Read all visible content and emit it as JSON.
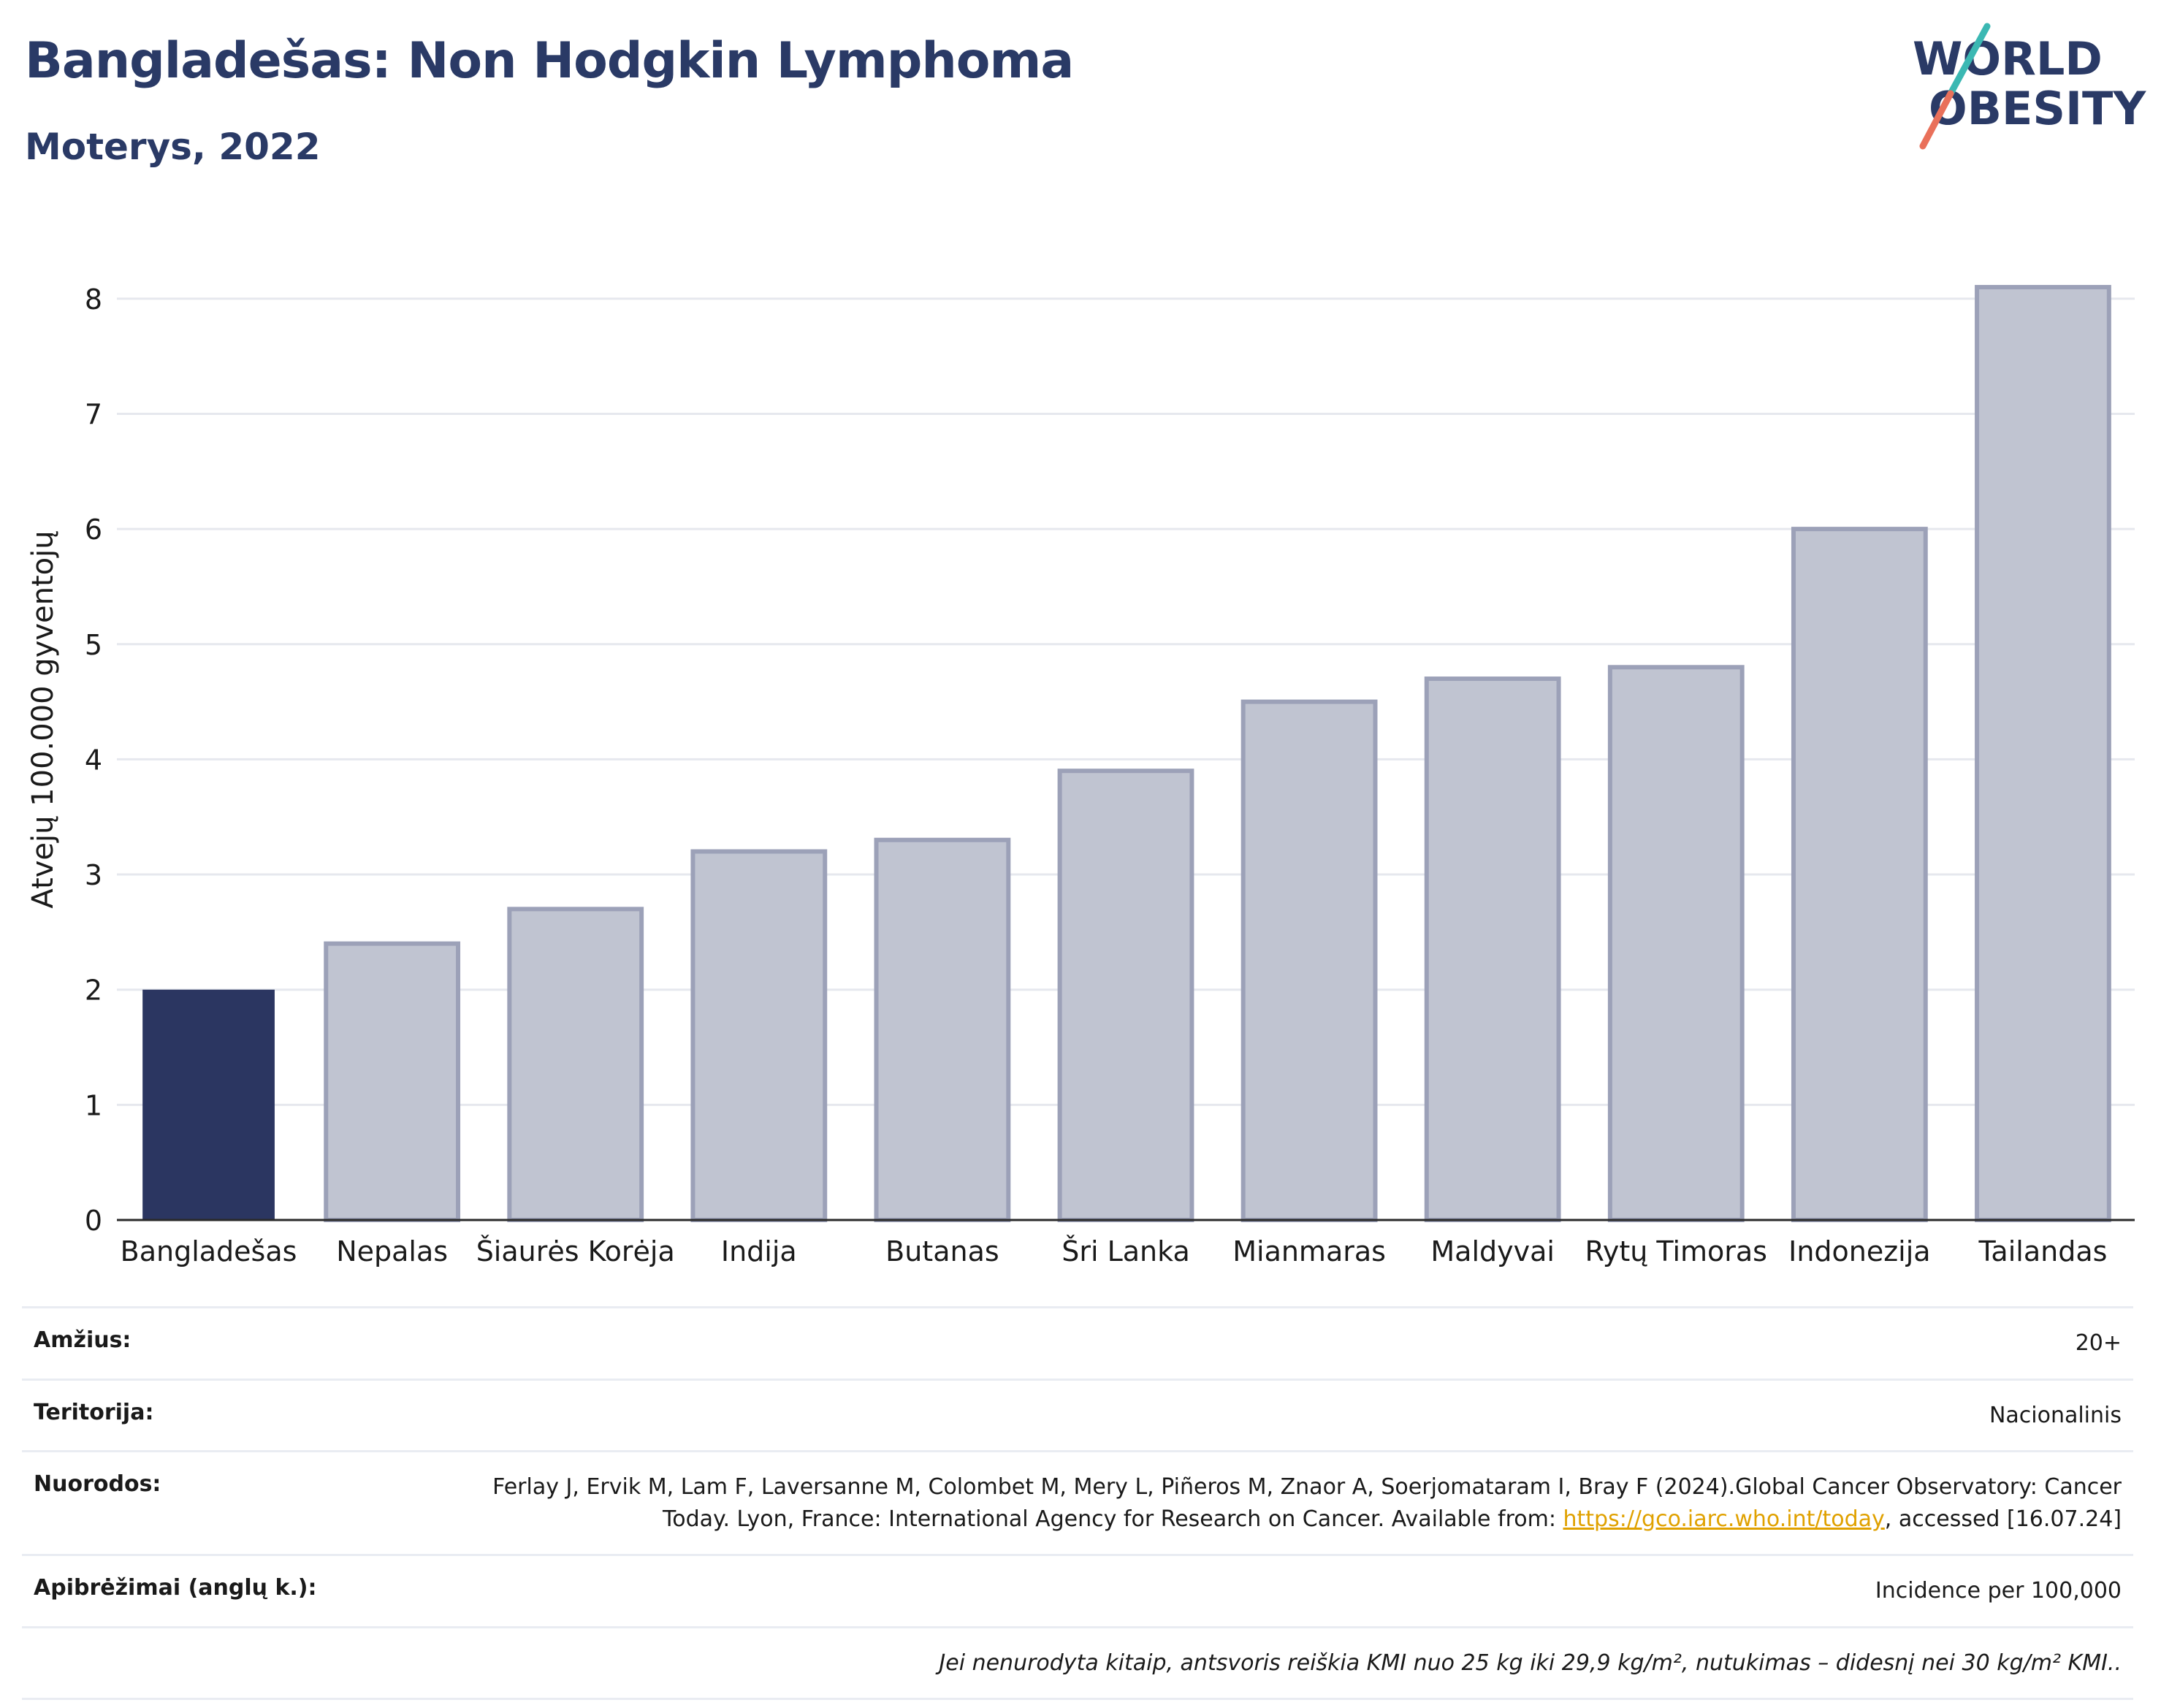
{
  "header": {
    "title": "Bangladešas: Non Hodgkin Lymphoma",
    "subtitle": "Moterys, 2022"
  },
  "logo": {
    "line1": "WORLD",
    "line2": "OBESITY"
  },
  "colors": {
    "highlight": "#2b3661",
    "bar": "#c0c4d1",
    "bar_stroke": "#9ca1b8",
    "grid": "#e6e8ee",
    "text": "#2a3a66"
  },
  "chart_data": {
    "type": "bar",
    "categories": [
      "Bangladešas",
      "Nepalas",
      "Šiaurės Korėja",
      "Indija",
      "Butanas",
      "Šri Lanka",
      "Mianmaras",
      "Maldyvai",
      "Rytų Timoras",
      "Indonezija",
      "Tailandas"
    ],
    "values": [
      2.0,
      2.4,
      2.7,
      3.2,
      3.3,
      3.9,
      4.5,
      4.7,
      4.8,
      6.0,
      8.1
    ],
    "highlight_index": 0,
    "ylabel": "Atvejų 100.000 gyventojų",
    "xlabel": "",
    "ylim": [
      0,
      8.5
    ],
    "yticks": [
      0,
      1,
      2,
      3,
      4,
      5,
      6,
      7,
      8
    ],
    "grid": true
  },
  "info": {
    "rows": [
      {
        "label": "Amžius:",
        "value": "20+"
      },
      {
        "label": "Teritorija:",
        "value": "Nacionalinis"
      },
      {
        "label": "Nuorodos:",
        "value_pre": "Ferlay J, Ervik M, Lam F, Laversanne M, Colombet M, Mery L, Piñeros M, Znaor A, Soerjomataram I, Bray F (2024).Global Cancer Observatory: Cancer Today. Lyon, France: International Agency for Research on Cancer. Available from: ",
        "link": "https://gco.iarc.who.int/today",
        "value_post": ", accessed [16.07.24]"
      },
      {
        "label": "Apibrėžimai (anglų k.):",
        "value": "Incidence per 100,000"
      },
      {
        "label": "",
        "value": "Jei nenurodyta kitaip, antsvoris reiškia KMI nuo 25 kg iki 29,9 kg/m², nutukimas – didesnį nei 30 kg/m² KMI.."
      }
    ]
  }
}
